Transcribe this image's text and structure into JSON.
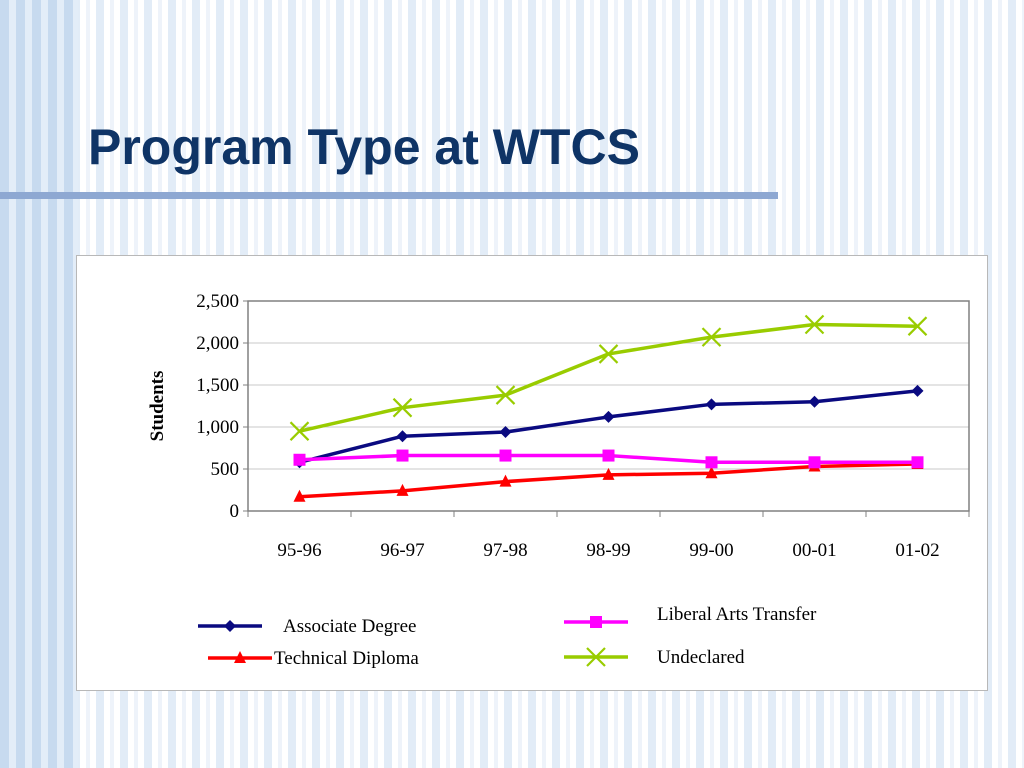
{
  "slide": {
    "title": "Program Type at WTCS"
  },
  "chart_data": {
    "type": "line",
    "title": "",
    "xlabel": "",
    "ylabel": "Students",
    "ylim": [
      0,
      2500
    ],
    "yticks": [
      0,
      500,
      1000,
      1500,
      2000,
      2500
    ],
    "ytick_labels": [
      "0",
      "500",
      "1,000",
      "1,500",
      "2,000",
      "2,500"
    ],
    "categories": [
      "95-96",
      "96-97",
      "97-98",
      "98-99",
      "99-00",
      "00-01",
      "01-02"
    ],
    "grid": true,
    "legend_position": "bottom",
    "series": [
      {
        "name": "Associate Degree",
        "color": "#0a0a80",
        "marker": "diamond",
        "values": [
          580,
          890,
          940,
          1120,
          1270,
          1300,
          1430
        ]
      },
      {
        "name": "Technical Diploma",
        "color": "#ff0000",
        "marker": "triangle",
        "values": [
          170,
          240,
          350,
          430,
          450,
          530,
          560
        ]
      },
      {
        "name": "Liberal Arts Transfer",
        "color": "#ff00ff",
        "marker": "square",
        "values": [
          610,
          660,
          660,
          660,
          580,
          580,
          580
        ]
      },
      {
        "name": "Undeclared",
        "color": "#99cc00",
        "marker": "x",
        "values": [
          950,
          1230,
          1380,
          1870,
          2070,
          2220,
          2200
        ]
      }
    ]
  }
}
